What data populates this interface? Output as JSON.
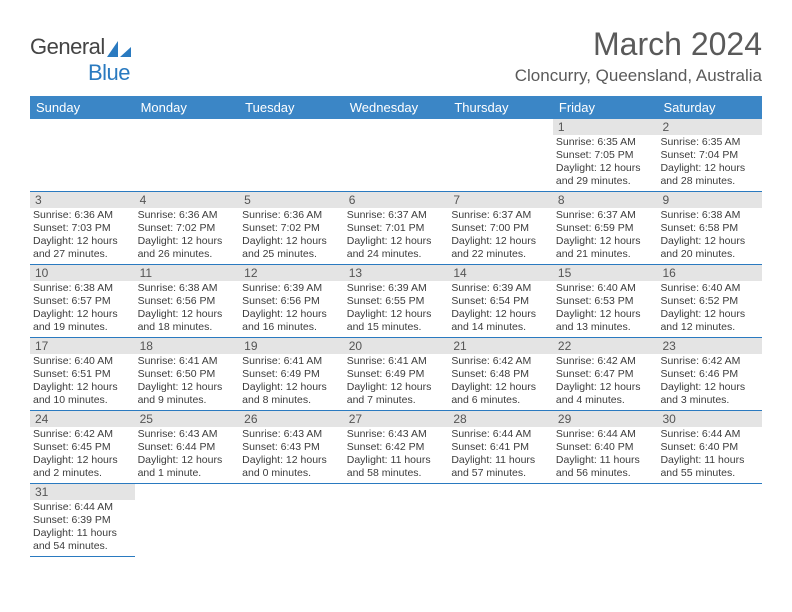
{
  "brand": {
    "part1": "General",
    "part2": "Blue"
  },
  "title": "March 2024",
  "location": "Cloncurry, Queensland, Australia",
  "colors": {
    "header_bar": "#3b86c6",
    "rule": "#2a7ac0",
    "daynum_bg": "#e4e4e4",
    "text_dark": "#3c3c3c",
    "text_muted": "#5a5a5a"
  },
  "dayNames": [
    "Sunday",
    "Monday",
    "Tuesday",
    "Wednesday",
    "Thursday",
    "Friday",
    "Saturday"
  ],
  "startOffset": 5,
  "days": [
    {
      "n": 1,
      "sunrise": "6:35 AM",
      "sunset": "7:05 PM",
      "dl": "12 hours and 29 minutes."
    },
    {
      "n": 2,
      "sunrise": "6:35 AM",
      "sunset": "7:04 PM",
      "dl": "12 hours and 28 minutes."
    },
    {
      "n": 3,
      "sunrise": "6:36 AM",
      "sunset": "7:03 PM",
      "dl": "12 hours and 27 minutes."
    },
    {
      "n": 4,
      "sunrise": "6:36 AM",
      "sunset": "7:02 PM",
      "dl": "12 hours and 26 minutes."
    },
    {
      "n": 5,
      "sunrise": "6:36 AM",
      "sunset": "7:02 PM",
      "dl": "12 hours and 25 minutes."
    },
    {
      "n": 6,
      "sunrise": "6:37 AM",
      "sunset": "7:01 PM",
      "dl": "12 hours and 24 minutes."
    },
    {
      "n": 7,
      "sunrise": "6:37 AM",
      "sunset": "7:00 PM",
      "dl": "12 hours and 22 minutes."
    },
    {
      "n": 8,
      "sunrise": "6:37 AM",
      "sunset": "6:59 PM",
      "dl": "12 hours and 21 minutes."
    },
    {
      "n": 9,
      "sunrise": "6:38 AM",
      "sunset": "6:58 PM",
      "dl": "12 hours and 20 minutes."
    },
    {
      "n": 10,
      "sunrise": "6:38 AM",
      "sunset": "6:57 PM",
      "dl": "12 hours and 19 minutes."
    },
    {
      "n": 11,
      "sunrise": "6:38 AM",
      "sunset": "6:56 PM",
      "dl": "12 hours and 18 minutes."
    },
    {
      "n": 12,
      "sunrise": "6:39 AM",
      "sunset": "6:56 PM",
      "dl": "12 hours and 16 minutes."
    },
    {
      "n": 13,
      "sunrise": "6:39 AM",
      "sunset": "6:55 PM",
      "dl": "12 hours and 15 minutes."
    },
    {
      "n": 14,
      "sunrise": "6:39 AM",
      "sunset": "6:54 PM",
      "dl": "12 hours and 14 minutes."
    },
    {
      "n": 15,
      "sunrise": "6:40 AM",
      "sunset": "6:53 PM",
      "dl": "12 hours and 13 minutes."
    },
    {
      "n": 16,
      "sunrise": "6:40 AM",
      "sunset": "6:52 PM",
      "dl": "12 hours and 12 minutes."
    },
    {
      "n": 17,
      "sunrise": "6:40 AM",
      "sunset": "6:51 PM",
      "dl": "12 hours and 10 minutes."
    },
    {
      "n": 18,
      "sunrise": "6:41 AM",
      "sunset": "6:50 PM",
      "dl": "12 hours and 9 minutes."
    },
    {
      "n": 19,
      "sunrise": "6:41 AM",
      "sunset": "6:49 PM",
      "dl": "12 hours and 8 minutes."
    },
    {
      "n": 20,
      "sunrise": "6:41 AM",
      "sunset": "6:49 PM",
      "dl": "12 hours and 7 minutes."
    },
    {
      "n": 21,
      "sunrise": "6:42 AM",
      "sunset": "6:48 PM",
      "dl": "12 hours and 6 minutes."
    },
    {
      "n": 22,
      "sunrise": "6:42 AM",
      "sunset": "6:47 PM",
      "dl": "12 hours and 4 minutes."
    },
    {
      "n": 23,
      "sunrise": "6:42 AM",
      "sunset": "6:46 PM",
      "dl": "12 hours and 3 minutes."
    },
    {
      "n": 24,
      "sunrise": "6:42 AM",
      "sunset": "6:45 PM",
      "dl": "12 hours and 2 minutes."
    },
    {
      "n": 25,
      "sunrise": "6:43 AM",
      "sunset": "6:44 PM",
      "dl": "12 hours and 1 minute."
    },
    {
      "n": 26,
      "sunrise": "6:43 AM",
      "sunset": "6:43 PM",
      "dl": "12 hours and 0 minutes."
    },
    {
      "n": 27,
      "sunrise": "6:43 AM",
      "sunset": "6:42 PM",
      "dl": "11 hours and 58 minutes."
    },
    {
      "n": 28,
      "sunrise": "6:44 AM",
      "sunset": "6:41 PM",
      "dl": "11 hours and 57 minutes."
    },
    {
      "n": 29,
      "sunrise": "6:44 AM",
      "sunset": "6:40 PM",
      "dl": "11 hours and 56 minutes."
    },
    {
      "n": 30,
      "sunrise": "6:44 AM",
      "sunset": "6:40 PM",
      "dl": "11 hours and 55 minutes."
    },
    {
      "n": 31,
      "sunrise": "6:44 AM",
      "sunset": "6:39 PM",
      "dl": "11 hours and 54 minutes."
    }
  ],
  "labels": {
    "sunrise": "Sunrise:",
    "sunset": "Sunset:",
    "daylight": "Daylight:"
  }
}
